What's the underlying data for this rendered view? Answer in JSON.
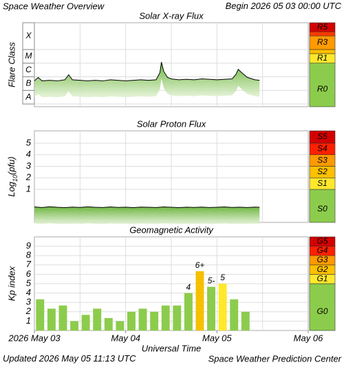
{
  "header": {
    "title": "Space Weather Overview",
    "begin_label": "Begin",
    "begin": "2026 05 03 00:00 UTC"
  },
  "chart_data": [
    {
      "type": "area",
      "title": "Solar X-ray Flux",
      "ylabel": "Flare Class",
      "log": true,
      "xlim": [
        0,
        72
      ],
      "xgrid": [
        12,
        24,
        36,
        48,
        60
      ],
      "ylim": [
        6.3e-09,
        0.0093
      ],
      "yticks": [
        {
          "value": 1e-08,
          "label": "A"
        },
        {
          "value": 1e-07,
          "label": "B"
        },
        {
          "value": 1e-06,
          "label": "C"
        },
        {
          "value": 1e-05,
          "label": "M"
        },
        {
          "value": 0.0001,
          "label": "X"
        }
      ],
      "tick_boxes": true,
      "grid": true,
      "x": [
        0,
        1,
        2,
        4,
        6,
        8,
        9,
        10,
        12,
        14,
        16,
        18,
        20,
        22,
        24,
        26,
        28,
        30,
        32,
        33,
        33.4,
        34,
        35,
        36,
        38,
        40,
        42,
        44,
        46,
        48,
        50,
        52,
        53,
        53.6,
        54.5,
        56,
        58,
        59.2
      ],
      "values": [
        5e-07,
        9e-07,
        5e-07,
        5.5e-07,
        5e-07,
        6e-07,
        1.4e-06,
        6e-07,
        5.5e-07,
        5e-07,
        5.5e-07,
        5e-07,
        6e-07,
        5.5e-07,
        5e-07,
        5.5e-07,
        6e-07,
        5.5e-07,
        6e-07,
        2e-06,
        1.2e-05,
        2.5e-06,
        9e-07,
        7e-07,
        6e-07,
        6.5e-07,
        6e-07,
        7e-07,
        6.5e-07,
        6e-07,
        6.5e-07,
        7e-07,
        1.5e-06,
        3.5e-06,
        2e-06,
        9e-07,
        6e-07,
        5.5e-07
      ],
      "color": "#000000",
      "scale": {
        "labels": [
          "R0",
          "R1",
          null,
          "R3",
          null,
          "R5"
        ],
        "thresholds": [
          1e-05,
          5e-05,
          0.0001,
          0.001,
          0.002
        ],
        "colors": [
          "#8ccc4c",
          "#ffe82c",
          "#ffc000",
          "#ff9a00",
          "#ff3a00",
          "#d40000"
        ]
      }
    },
    {
      "type": "area",
      "title": "Solar Proton Flux",
      "ylabel": [
        "Log",
        "10",
        "(pfu)"
      ],
      "xlim": [
        0,
        72
      ],
      "xgrid": [
        12,
        24,
        36,
        48,
        60
      ],
      "ylim": [
        -1.86,
        6.07
      ],
      "yticks": [
        1,
        2,
        3,
        4,
        5
      ],
      "grid": true,
      "x": [
        0,
        2,
        4,
        6,
        8,
        10,
        12,
        14,
        16,
        18,
        20,
        22,
        24,
        26,
        28,
        30,
        32,
        34,
        36,
        38,
        40,
        42,
        44,
        46,
        48,
        50,
        52,
        54,
        56,
        58,
        59.2
      ],
      "values": [
        -0.52,
        -0.57,
        -0.5,
        -0.55,
        -0.58,
        -0.53,
        -0.56,
        -0.51,
        -0.55,
        -0.57,
        -0.52,
        -0.56,
        -0.54,
        -0.58,
        -0.53,
        -0.55,
        -0.57,
        -0.52,
        -0.55,
        -0.58,
        -0.54,
        -0.56,
        -0.53,
        -0.57,
        -0.55,
        -0.52,
        -0.56,
        -0.54,
        -0.57,
        -0.53,
        -0.55
      ],
      "color": "#000000",
      "scale": {
        "labels": [
          "S0",
          "S1",
          "S2",
          "S3",
          "S4",
          "S5"
        ],
        "thresholds": [
          1,
          2,
          3,
          4,
          5
        ],
        "colors": [
          "#8ccc4c",
          "#ffe82c",
          "#ffc000",
          "#ff9a00",
          "#ff2000",
          "#d40000"
        ]
      }
    },
    {
      "type": "bar",
      "title": "Geomagnetic Activity",
      "ylabel": "Kp index",
      "xlabel": "Universal Time",
      "xlim": [
        0,
        72
      ],
      "xgrid": [
        12,
        24,
        36,
        48,
        60
      ],
      "xticks": [
        {
          "value": 0,
          "label": "2026 May 03"
        },
        {
          "value": 24,
          "label": "May 04"
        },
        {
          "value": 48,
          "label": "May 05"
        },
        {
          "value": 72,
          "label": "May 06"
        }
      ],
      "ylim": [
        0,
        10
      ],
      "yticks": [
        1,
        2,
        3,
        4,
        5,
        6,
        7,
        8,
        9
      ],
      "grid": true,
      "bar_width": 3,
      "x": [
        1.5,
        4.5,
        7.5,
        10.5,
        13.5,
        16.5,
        19.5,
        22.5,
        25.5,
        28.5,
        31.5,
        34.5,
        37.5,
        40.5,
        43.5,
        46.5,
        49.5,
        52.5,
        55.5
      ],
      "values": [
        3.33,
        2.33,
        2.67,
        1,
        1.67,
        2.33,
        1.33,
        1,
        2,
        2.33,
        2,
        2.67,
        2.67,
        4,
        6.33,
        4.67,
        5,
        3.33,
        2
      ],
      "value_labels": [
        null,
        null,
        null,
        null,
        null,
        null,
        null,
        null,
        null,
        null,
        null,
        null,
        null,
        "4",
        "6+",
        "5-",
        "5",
        null,
        null
      ],
      "colors": [
        "#8ccc4c",
        "#8ccc4c",
        "#8ccc4c",
        "#8ccc4c",
        "#8ccc4c",
        "#8ccc4c",
        "#8ccc4c",
        "#8ccc4c",
        "#8ccc4c",
        "#8ccc4c",
        "#8ccc4c",
        "#8ccc4c",
        "#8ccc4c",
        "#8ccc4c",
        "#f5c000",
        "#8ccc4c",
        "#ffe82c",
        "#8ccc4c",
        "#8ccc4c"
      ],
      "scale": {
        "labels": [
          "G0",
          "G1",
          "G2",
          "G3",
          "G4",
          "G5"
        ],
        "thresholds": [
          5,
          6,
          7,
          8,
          9
        ],
        "colors": [
          "#8ccc4c",
          "#ffe82c",
          "#ffc000",
          "#ff9a00",
          "#ff2000",
          "#d40000"
        ]
      }
    }
  ],
  "footer": {
    "updated_label": "Updated",
    "updated": "2026 May 05 11:13 UTC",
    "credit": "Space Weather Prediction Center"
  }
}
